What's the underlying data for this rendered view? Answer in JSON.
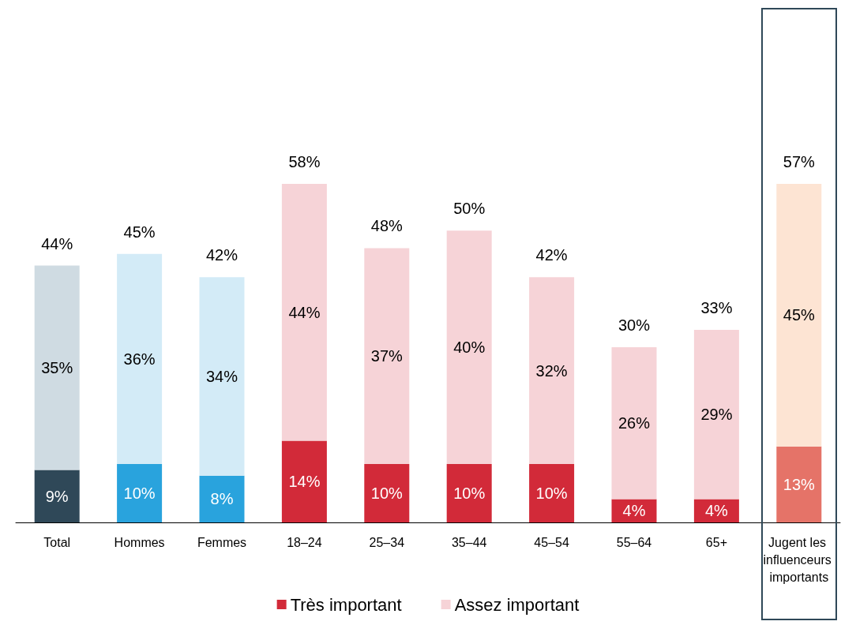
{
  "chart_data": {
    "type": "bar",
    "stacked": true,
    "categories": [
      "Total",
      "Hommes",
      "Femmes",
      "18–24",
      "25–34",
      "35–44",
      "45–54",
      "55–64",
      "65+",
      "Jugent les influenceurs importants"
    ],
    "series": [
      {
        "name": "Très important",
        "color": "#d22a39",
        "colors": [
          "#2f4858",
          "#29a3dd",
          "#29a3dd",
          "#d22a39",
          "#d22a39",
          "#d22a39",
          "#d22a39",
          "#d22a39",
          "#d22a39",
          "#e57368"
        ],
        "values": [
          9,
          10,
          8,
          14,
          10,
          10,
          10,
          4,
          4,
          13
        ],
        "value_labels": [
          "9%",
          "10%",
          "8%",
          "14%",
          "10%",
          "10%",
          "10%",
          "4%",
          "4%",
          "13%"
        ]
      },
      {
        "name": "Assez important",
        "color": "#f6d3d7",
        "colors": [
          "#cfdbe2",
          "#d3ebf7",
          "#d3ebf7",
          "#f6d3d7",
          "#f6d3d7",
          "#f6d3d7",
          "#f6d3d7",
          "#f6d3d7",
          "#f6d3d7",
          "#fde4d3"
        ],
        "values": [
          35,
          36,
          34,
          44,
          37,
          40,
          32,
          26,
          29,
          45
        ],
        "value_labels": [
          "35%",
          "36%",
          "34%",
          "44%",
          "37%",
          "40%",
          "32%",
          "26%",
          "29%",
          "45%"
        ]
      }
    ],
    "totals": [
      "44%",
      "45%",
      "42%",
      "58%",
      "48%",
      "50%",
      "42%",
      "30%",
      "33%",
      "57%"
    ],
    "legend": "bottom",
    "grid": false
  }
}
